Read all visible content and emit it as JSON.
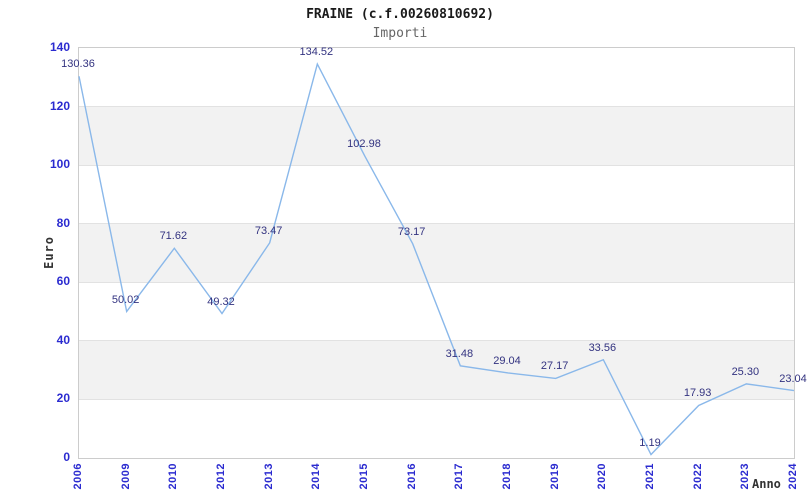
{
  "chart_data": {
    "type": "line",
    "title": "FRAINE (c.f.00260810692)",
    "subtitle": "Importi",
    "xlabel": "Anno",
    "ylabel": "Euro",
    "categories": [
      "2006",
      "2009",
      "2010",
      "2012",
      "2013",
      "2014",
      "2015",
      "2016",
      "2017",
      "2018",
      "2019",
      "2020",
      "2021",
      "2022",
      "2023",
      "2024"
    ],
    "values": [
      130.36,
      50.02,
      71.62,
      49.32,
      73.47,
      134.52,
      102.98,
      73.17,
      31.48,
      29.04,
      27.17,
      33.56,
      1.19,
      17.93,
      25.3,
      23.04
    ],
    "value_labels": [
      "130.36",
      "50.02",
      "71.62",
      "49.32",
      "73.47",
      "134.52",
      "102.98",
      "73.17",
      "31.48",
      "29.04",
      "27.17",
      "33.56",
      "1.19",
      "17.93",
      "25.30",
      "23.04"
    ],
    "ylim": [
      0,
      140
    ],
    "ytick_step": 20,
    "grid": true,
    "legend": false,
    "banded_background": true,
    "colors": {
      "line": "#8ab8ea",
      "tick_label": "#2b2bd0",
      "point_label": "#333380",
      "band": "#f2f2f2",
      "gridline": "#e2e2e2",
      "plot_border": "#cccccc",
      "title": "#1a1a1a",
      "subtitle": "#666666",
      "axis_label": "#333333"
    }
  }
}
